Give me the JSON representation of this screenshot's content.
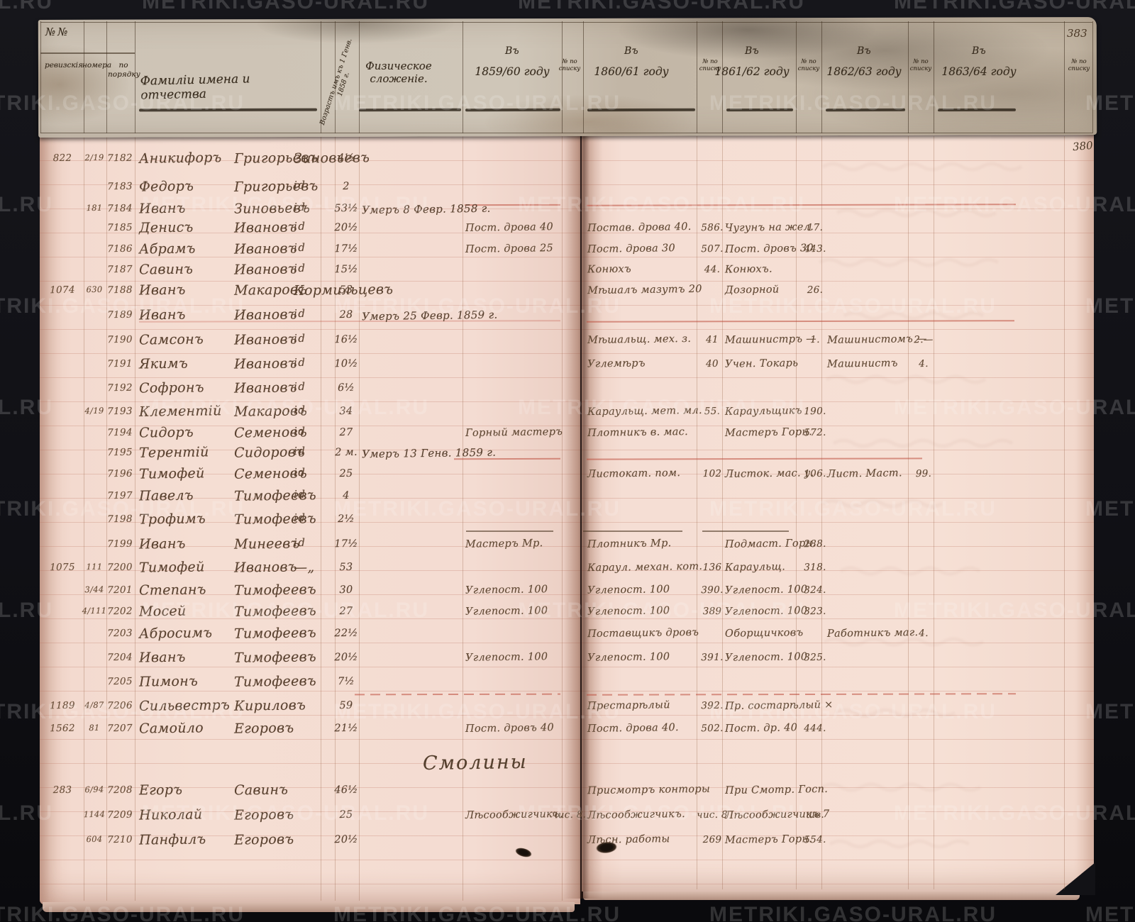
{
  "watermark_text": "METRIKI.GASO-URAL.RU",
  "page_numbers": {
    "header_sheet": "383",
    "page": "380"
  },
  "header": {
    "nn": "№№",
    "subcols": [
      "ревизскiя",
      "номера",
      "по порядку"
    ],
    "names": "Фамилiи имена и отчества",
    "age_col": "Возрастъ имъ къ 1 Генв. 1858 г.",
    "physique": "Физическое сложенiе.",
    "year_prefix": "Въ",
    "years": [
      "1859/60 году",
      "1860/61 году",
      "1861/62 году",
      "1862/63 году",
      "1863/64 году"
    ],
    "num_col": "№ по списку"
  },
  "section_heading": "Смолины",
  "rows": [
    {
      "rev": "822",
      "nom": "2/19",
      "num": "7182",
      "first": "Аникифоръ",
      "patr": "Григорьевъ",
      "last": "Зиновьевъ",
      "age": "4½"
    },
    {
      "num": "7183",
      "first": "Федоръ",
      "patr": "Григорьевъ",
      "last": "id",
      "age": "2"
    },
    {
      "nom": "181",
      "num": "7184",
      "first": "Иванъ",
      "patr": "Зиновьевъ",
      "last": "id",
      "age": "53½",
      "phys": "Умеръ 8 Февр. 1858 г."
    },
    {
      "num": "7185",
      "first": "Денисъ",
      "patr": "Ивановъ",
      "last": "id",
      "age": "20½",
      "c1859": "Пост. дрова 40",
      "c1860": "Постав. дрова 40.",
      "n1860": "586.",
      "c1861": "Чугунъ на жел.",
      "n1861": "17."
    },
    {
      "num": "7186",
      "first": "Абрамъ",
      "patr": "Ивановъ",
      "last": "id",
      "age": "17½",
      "c1859": "Пост. дрова 25",
      "c1860": "Пост. дрова 30",
      "n1860": "507.",
      "c1861": "Пост. дровъ 30",
      "n1861": "443."
    },
    {
      "num": "7187",
      "first": "Савинъ",
      "patr": "Ивановъ",
      "last": "id",
      "age": "15½",
      "c1860": "Конюхъ",
      "n1860": "44.",
      "c1861": "Конюхъ."
    },
    {
      "rev": "1074",
      "nom": "630",
      "num": "7188",
      "first": "Иванъ",
      "patr": "Макаровъ",
      "last": "Кормильцевъ",
      "age": "53",
      "c1860": "Мѣшалъ мазутъ 20",
      "c1861": "Дозорной",
      "n1861": "26."
    },
    {
      "num": "7189",
      "first": "Иванъ",
      "patr": "Ивановъ",
      "last": "id",
      "age": "28",
      "phys": "Умеръ 25 Февр. 1859 г."
    },
    {
      "num": "7190",
      "first": "Самсонъ",
      "patr": "Ивановъ",
      "last": "id",
      "age": "16½",
      "c1860": "Мѣшальщ. мех. з.",
      "n1860": "41",
      "c1861": "Машинистръ —",
      "n1861": "1.",
      "c1862": "Машинистомъ —",
      "n1862": "2.—"
    },
    {
      "num": "7191",
      "first": "Якимъ",
      "patr": "Ивановъ",
      "last": "id",
      "age": "10½",
      "c1860": "Углемѣръ",
      "n1860": "40",
      "c1861": "Учен. Токарь",
      "c1862": "Машинистъ",
      "n1862": "4."
    },
    {
      "num": "7192",
      "first": "Софронъ",
      "patr": "Ивановъ",
      "last": "id",
      "age": "6½"
    },
    {
      "nom": "4/19",
      "num": "7193",
      "first": "Клементiй",
      "patr": "Макаровъ",
      "last": "id",
      "age": "34",
      "c1860": "Караульщ. мет. мл.",
      "n1860": "55.",
      "c1861": "Караульщикъ",
      "n1861": "190."
    },
    {
      "num": "7194",
      "first": "Сидоръ",
      "patr": "Семеновъ",
      "last": "id",
      "age": "27",
      "c1859": "Горный мастеръ",
      "c1860": "Плотникъ в. мас.",
      "c1861": "Мастеръ Горн.",
      "n1861": "572."
    },
    {
      "num": "7195",
      "first": "Терентiй",
      "patr": "Сидоровъ",
      "last": "id",
      "age": "2 м.",
      "phys": "Умеръ 13 Генв. 1859 г."
    },
    {
      "num": "7196",
      "first": "Тимофей",
      "patr": "Семеновъ",
      "last": "id",
      "age": "25",
      "c1860": "Листокат. пом.",
      "n1860": "102",
      "c1861": "Листок. мас. у.",
      "n1861": "106.",
      "c1862": "Лист. Маст.",
      "n1862": "99."
    },
    {
      "num": "7197",
      "first": "Павелъ",
      "patr": "Тимофеевъ",
      "last": "id",
      "age": "4"
    },
    {
      "num": "7198",
      "first": "Трофимъ",
      "patr": "Тимофеевъ",
      "last": "id",
      "age": "2½"
    },
    {
      "num": "7199",
      "first": "Иванъ",
      "patr": "Минеевъ",
      "last": "id",
      "age": "17½",
      "c1859": "Мастеръ Мр.",
      "c1860": "Плотникъ Мр.",
      "c1861": "Подмаст. Горн.",
      "n1861": "288."
    },
    {
      "rev": "1075",
      "nom": "111",
      "num": "7200",
      "first": "Тимофей",
      "patr": "Ивановъ",
      "last": "—„",
      "age": "53",
      "c1860": "Караул. механ. кот.",
      "n1860": "136",
      "c1861": "Караульщ.",
      "n1861": "318."
    },
    {
      "nom": "3/44",
      "num": "7201",
      "first": "Степанъ",
      "patr": "Тимофеевъ",
      "age": "30",
      "c1859": "Углепост. 100",
      "c1860": "Углепост. 100",
      "n1860": "390.",
      "c1861": "Углепост. 100",
      "n1861": "324."
    },
    {
      "nom": "4/111",
      "num": "7202",
      "first": "Мосей",
      "patr": "Тимофеевъ",
      "age": "27",
      "c1859": "Углепост. 100",
      "c1860": "Углепост. 100",
      "n1860": "389",
      "c1861": "Углепост. 100",
      "n1861": "323."
    },
    {
      "num": "7203",
      "first": "Абросимъ",
      "patr": "Тимофеевъ",
      "age": "22½",
      "c1860": "Поставщикъ дровъ",
      "c1861": "Оборщичковъ",
      "c1862": "Работникъ маг.",
      "n1862": "4."
    },
    {
      "num": "7204",
      "first": "Иванъ",
      "patr": "Тимофеевъ",
      "age": "20½",
      "c1859": "Углепост. 100",
      "c1860": "Углепост. 100",
      "n1860": "391.",
      "c1861": "Углепост. 100",
      "n1861": "325."
    },
    {
      "num": "7205",
      "first": "Пимонъ",
      "patr": "Тимофеевъ",
      "age": "7½"
    },
    {
      "rev": "1189",
      "nom": "4/87",
      "num": "7206",
      "first": "Сильвестръ",
      "patr": "Кириловъ",
      "age": "59",
      "c1860": "Престарѣлый",
      "n1860": "392.",
      "c1861": "Пр. состарѣлый ×"
    },
    {
      "rev": "1562",
      "nom": "81",
      "num": "7207",
      "first": "Самойло",
      "patr": "Егоровъ",
      "age": "21½",
      "c1859": "Пост. дровъ 40",
      "c1860": "Пост. дрова 40.",
      "n1860": "502.",
      "c1861": "Пост. др. 40",
      "n1861": "444."
    },
    {
      "rev": "283",
      "nom": "6/94",
      "num": "7208",
      "first": "Егоръ",
      "patr": "Савинъ",
      "age": "46½",
      "c1860": "Присмотръ конторы",
      "c1861": "При Смотр. Госп."
    },
    {
      "nom": "1144",
      "num": "7209",
      "first": "Николай",
      "patr": "Егоровъ",
      "age": "25",
      "c1859": "Лѣсообжигчикъ.",
      "n1859": "чис. 8.",
      "c1860": "Лѣсообжигчикъ.",
      "n1860": "чис. 8",
      "c1861": "Лѣсообжигчикъ 7",
      "n1861": "шв."
    },
    {
      "nom": "604",
      "num": "7210",
      "first": "Панфилъ",
      "patr": "Егоровъ",
      "age": "20½",
      "c1860": "Лѣсн. работы",
      "n1860": "269",
      "c1861": "Мастеръ Горн.",
      "n1861": "554."
    }
  ]
}
